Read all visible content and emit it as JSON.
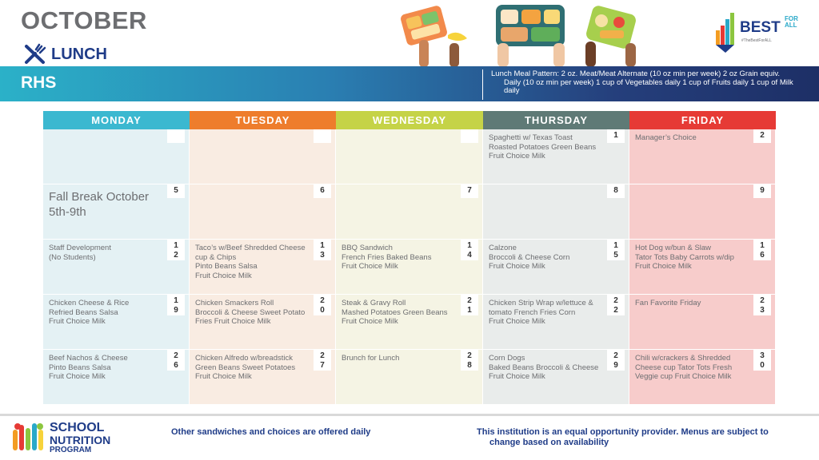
{
  "header": {
    "month": "OCTOBER",
    "meal_label": "LUNCH",
    "school": "RHS",
    "pattern_text": "Lunch Meal Pattern: 2 oz. Meat/Meat Alternate (10 oz min per week) 2 oz Grain equiv. Daily (10 oz min per week) 1 cup of Vegetables daily 1 cup of Fruits daily 1 cup of Milk daily",
    "logo": {
      "best": "BEST",
      "for_all": "FOR\nALL",
      "hashtag": "#TheBestForALL"
    }
  },
  "colors": {
    "monday": "#3bb8d0",
    "tuesday": "#ee7d2c",
    "wednesday": "#c5d347",
    "thursday": "#5f7a76",
    "friday": "#e63a35",
    "monday_bg": "#e4f1f4",
    "tuesday_bg": "#f9ece2",
    "wednesday_bg": "#f5f4e4",
    "thursday_bg": "#e9eceb",
    "friday_bg": "#f7cccb"
  },
  "days": [
    "MONDAY",
    "TUESDAY",
    "WEDNESDAY",
    "THURSDAY",
    "FRIDAY"
  ],
  "weeks": [
    [
      {
        "num": "",
        "menu": ""
      },
      {
        "num": "",
        "menu": ""
      },
      {
        "num": "",
        "menu": ""
      },
      {
        "num": "1",
        "menu": "Spaghetti w/ Texas Toast\n Roasted Potatoes  Green Beans Fruit Choice Milk"
      },
      {
        "num": "2",
        "menu": "Manager’s Choice"
      }
    ],
    [
      {
        "num": "5",
        "menu": "Fall Break October 5th-9th",
        "big": true
      },
      {
        "num": "6",
        "menu": ""
      },
      {
        "num": "7",
        "menu": ""
      },
      {
        "num": "8",
        "menu": ""
      },
      {
        "num": "9",
        "menu": ""
      }
    ],
    [
      {
        "num": "1\n2",
        "menu": "Staff Development\n(No Students)"
      },
      {
        "num": "1\n3",
        "menu": "Taco’s w/Beef Shredded Cheese cup  & Chips\nPinto Beans Salsa\nFruit Choice Milk"
      },
      {
        "num": "1\n4",
        "menu": "BBQ Sandwich\nFrench Fries Baked Beans\n Fruit Choice Milk"
      },
      {
        "num": "1\n5",
        "menu": "Calzone\nBroccoli & Cheese Corn\nFruit Choice Milk"
      },
      {
        "num": "1\n6",
        "menu": "Hot Dog w/bun & Slaw\nTator Tots Baby Carrots w/dip\nFruit Choice Milk"
      }
    ],
    [
      {
        "num": "1\n9",
        "menu": "Chicken Cheese & Rice\nRefried Beans Salsa\nFruit Choice Milk"
      },
      {
        "num": "2\n0",
        "menu": "Chicken Smackers Roll\nBroccoli & Cheese Sweet Potato Fries  Fruit Choice Milk"
      },
      {
        "num": "2\n1",
        "menu": "Steak & Gravy Roll\nMashed Potatoes Green Beans\nFruit Choice Milk"
      },
      {
        "num": "2\n2",
        "menu": "Chicken Strip Wrap w/lettuce & tomato French Fries Corn\nFruit Choice Milk"
      },
      {
        "num": "2\n3",
        "menu": "Fan Favorite Friday"
      }
    ],
    [
      {
        "num": "2\n6",
        "menu": "Beef Nachos & Cheese\nPinto Beans Salsa\nFruit Choice Milk"
      },
      {
        "num": "2\n7",
        "menu": "Chicken Alfredo w/breadstick\nGreen Beans Sweet Potatoes\nFruit Choice Milk"
      },
      {
        "num": "2\n8",
        "menu": "Brunch for Lunch"
      },
      {
        "num": "2\n9",
        "menu": "Corn Dogs\nBaked Beans  Broccoli & Cheese Fruit Choice Milk"
      },
      {
        "num": "3\n0",
        "menu": "Chili w/crackers & Shredded Cheese cup Tator Tots  Fresh Veggie cup Fruit Choice Milk"
      }
    ]
  ],
  "footer": {
    "snp_line1": "SCHOOL",
    "snp_line2": "NUTRITION",
    "snp_line3": "PROGRAM",
    "left": "Other sandwiches and choices are offered daily",
    "right_1": "This institution is an equal opportunity provider. Menus are subject to",
    "right_2": "change based on availability"
  }
}
